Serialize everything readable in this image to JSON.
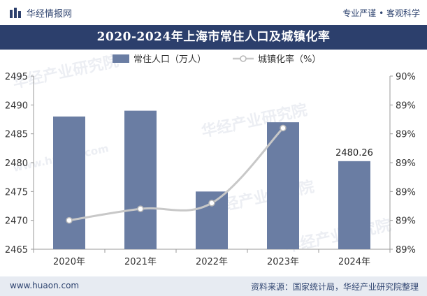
{
  "header": {
    "brand": "华经情报网",
    "tagline": "专业严谨 • 客观科学",
    "logo_icon": "bars-logo-icon"
  },
  "title": "2020-2024年上海市常住人口及城镇化率",
  "footer": {
    "left": "www.huaon.com",
    "right": "资料来源：国家统计局，华经产业研究院整理"
  },
  "watermarks": [
    "华经产业研究院",
    "www.huaon.com"
  ],
  "colors": {
    "bar": "#6a7da3",
    "line": "#c8c8c8",
    "marker_fill": "#ffffff",
    "marker_stroke": "#b8b8b8",
    "title_bg": "#2c3f6c",
    "footer_bg": "#e7ebf2"
  },
  "chart_data": {
    "type": "bar",
    "categories": [
      "2020年",
      "2021年",
      "2022年",
      "2023年",
      "2024年"
    ],
    "series": [
      {
        "name": "常住人口（万人）",
        "type": "bar",
        "axis": "left",
        "values": [
          2488,
          2489,
          2475,
          2487,
          2480.26
        ],
        "labels": [
          "",
          "",
          "",
          "",
          "2480.26"
        ]
      },
      {
        "name": "城镇化率（%）",
        "type": "line",
        "axis": "right",
        "values": [
          89.3,
          89.32,
          89.33,
          89.46,
          null
        ]
      }
    ],
    "y_left": {
      "min": 2465,
      "max": 2495,
      "ticks": [
        2465,
        2470,
        2475,
        2480,
        2485,
        2490,
        2495
      ]
    },
    "y_right": {
      "min": 89.25,
      "max": 89.55,
      "ticks": [
        89.25,
        89.3,
        89.35,
        89.4,
        89.45,
        89.5,
        89.55
      ],
      "tick_labels": [
        "89%",
        "89%",
        "89%",
        "89%",
        "89%",
        "89%",
        "90%"
      ]
    },
    "legend_position": "top-center",
    "grid": false
  }
}
